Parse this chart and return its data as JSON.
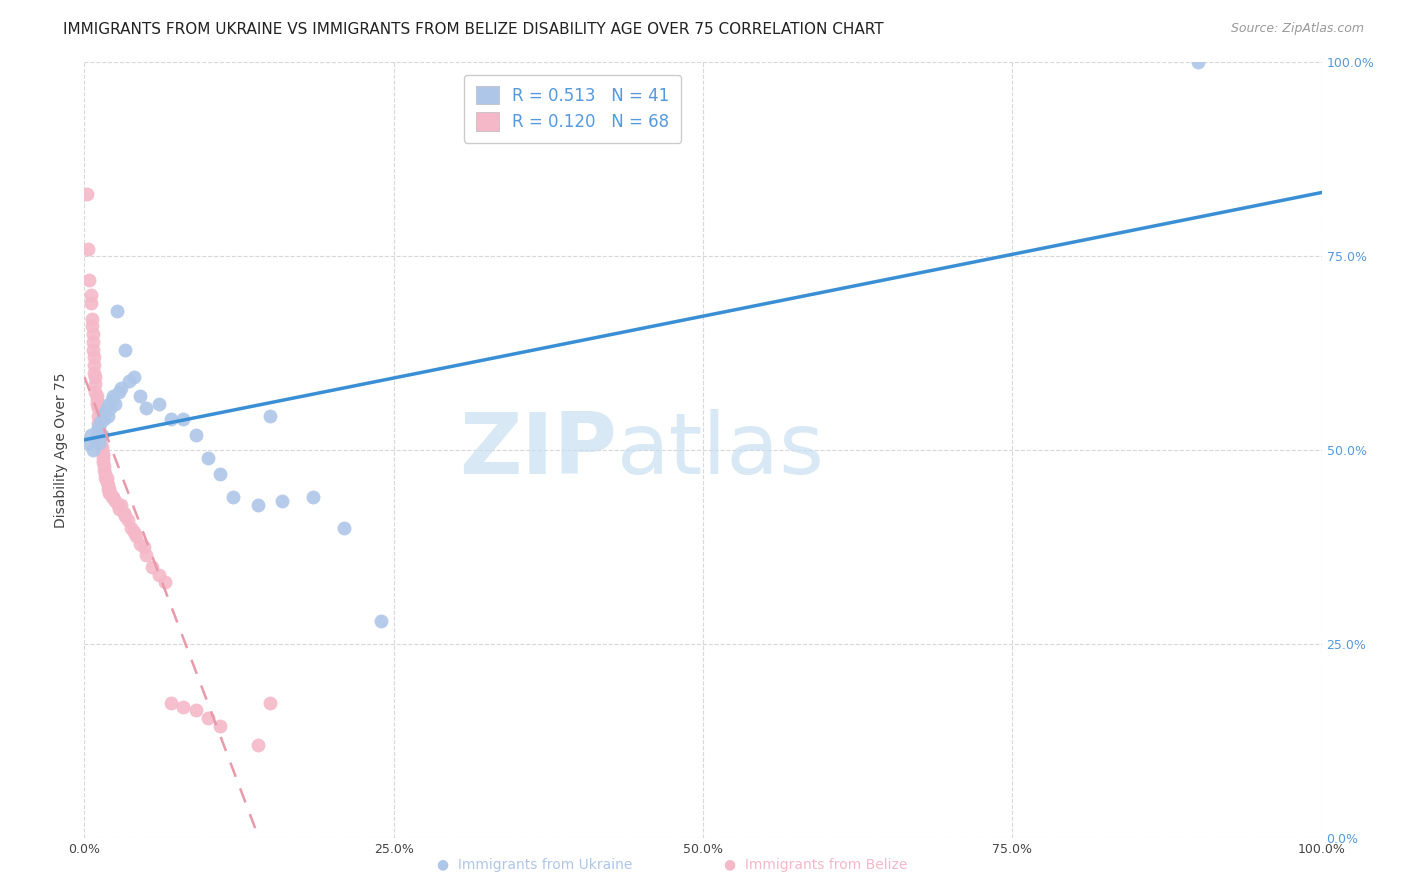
{
  "title": "IMMIGRANTS FROM UKRAINE VS IMMIGRANTS FROM BELIZE DISABILITY AGE OVER 75 CORRELATION CHART",
  "source": "Source: ZipAtlas.com",
  "ylabel": "Disability Age Over 75",
  "legend_label_ukraine": "Immigrants from Ukraine",
  "legend_label_belize": "Immigrants from Belize",
  "watermark_zip": "ZIP",
  "watermark_atlas": "atlas",
  "ukraine_R": "0.513",
  "ukraine_N": "41",
  "belize_R": "0.120",
  "belize_N": "68",
  "ukraine_color": "#aec6e8",
  "belize_color": "#f4b8c8",
  "ukraine_line_color": "#3a8fd4",
  "belize_line_color": "#e89aaa",
  "xlim": [
    0.0,
    1.0
  ],
  "ylim": [
    0.0,
    1.0
  ],
  "ukraine_scatter_x": [
    0.003,
    0.005,
    0.007,
    0.009,
    0.01,
    0.011,
    0.012,
    0.013,
    0.014,
    0.015,
    0.016,
    0.017,
    0.018,
    0.019,
    0.02,
    0.021,
    0.022,
    0.023,
    0.025,
    0.026,
    0.028,
    0.03,
    0.033,
    0.036,
    0.04,
    0.045,
    0.05,
    0.06,
    0.07,
    0.08,
    0.09,
    0.1,
    0.11,
    0.12,
    0.14,
    0.15,
    0.16,
    0.185,
    0.21,
    0.24,
    0.9
  ],
  "ukraine_scatter_y": [
    0.51,
    0.52,
    0.5,
    0.515,
    0.525,
    0.53,
    0.51,
    0.535,
    0.52,
    0.545,
    0.54,
    0.55,
    0.555,
    0.545,
    0.56,
    0.555,
    0.565,
    0.57,
    0.56,
    0.68,
    0.575,
    0.58,
    0.63,
    0.59,
    0.595,
    0.57,
    0.555,
    0.56,
    0.54,
    0.54,
    0.52,
    0.49,
    0.47,
    0.44,
    0.43,
    0.545,
    0.435,
    0.44,
    0.4,
    0.28,
    1.0
  ],
  "belize_scatter_x": [
    0.002,
    0.003,
    0.004,
    0.005,
    0.005,
    0.006,
    0.006,
    0.007,
    0.007,
    0.007,
    0.008,
    0.008,
    0.008,
    0.009,
    0.009,
    0.009,
    0.01,
    0.01,
    0.01,
    0.011,
    0.011,
    0.011,
    0.012,
    0.012,
    0.012,
    0.013,
    0.013,
    0.014,
    0.014,
    0.015,
    0.015,
    0.015,
    0.016,
    0.016,
    0.017,
    0.017,
    0.018,
    0.018,
    0.019,
    0.019,
    0.02,
    0.02,
    0.021,
    0.022,
    0.023,
    0.025,
    0.027,
    0.028,
    0.03,
    0.032,
    0.033,
    0.035,
    0.038,
    0.04,
    0.042,
    0.045,
    0.048,
    0.05,
    0.055,
    0.06,
    0.065,
    0.07,
    0.08,
    0.09,
    0.1,
    0.11,
    0.14,
    0.15
  ],
  "belize_scatter_y": [
    0.83,
    0.76,
    0.72,
    0.7,
    0.69,
    0.67,
    0.66,
    0.65,
    0.64,
    0.63,
    0.62,
    0.61,
    0.6,
    0.595,
    0.585,
    0.575,
    0.57,
    0.565,
    0.56,
    0.555,
    0.545,
    0.535,
    0.53,
    0.525,
    0.52,
    0.515,
    0.51,
    0.505,
    0.5,
    0.495,
    0.49,
    0.485,
    0.48,
    0.475,
    0.47,
    0.465,
    0.465,
    0.46,
    0.455,
    0.45,
    0.45,
    0.445,
    0.445,
    0.44,
    0.44,
    0.435,
    0.43,
    0.425,
    0.43,
    0.42,
    0.415,
    0.41,
    0.4,
    0.395,
    0.39,
    0.38,
    0.375,
    0.365,
    0.35,
    0.34,
    0.33,
    0.175,
    0.17,
    0.165,
    0.155,
    0.145,
    0.12,
    0.175
  ],
  "grid_color": "#d8d8d8",
  "background_color": "#ffffff",
  "title_fontsize": 11,
  "axis_label_fontsize": 10,
  "tick_fontsize": 9,
  "legend_fontsize": 12
}
